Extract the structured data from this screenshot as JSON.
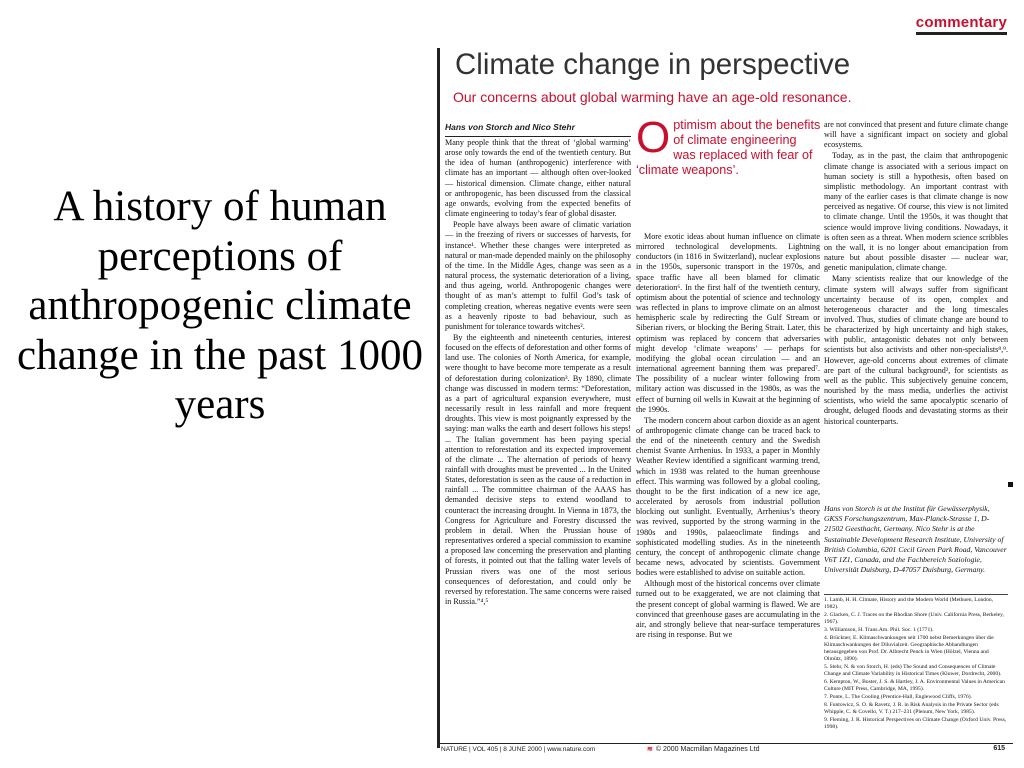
{
  "slide": {
    "title": "A history of human perceptions of anthropogenic climate change in the past 1000 years"
  },
  "article": {
    "section": "commentary",
    "title": "Climate change in perspective",
    "subtitle": "Our concerns about global warming have an age-old resonance.",
    "authors": "Hans von Storch and Nico Stehr",
    "pullquote": {
      "dropcap": "O",
      "text": "ptimism about the benefits of climate engineering was replaced with fear of ‘climate weapons’."
    },
    "col1": [
      "Many people think that the threat of ‘global warming’ arose only towards the end of the twentieth century. But the idea of human (anthropogenic) interference with climate has an important — although often over-looked — historical dimension. Climate change, either natural or anthropogenic, has been discussed from the classical age onwards, evolving from the expected benefits of climate engineering to today’s fear of global disaster.",
      "People have always been aware of climatic variation — in the freezing of rivers or successes of harvests, for instance¹. Whether these changes were interpreted as natural or man-made depended mainly on the philosophy of the time. In the Middle Ages, change was seen as a natural process, the systematic deterioration of a living, and thus ageing, world. Anthropogenic changes were thought of as man’s attempt to fulfil God’s task of completing creation, whereas negative events were seen as a heavenly riposte to bad behaviour, such as punishment for tolerance towards witches².",
      "By the eighteenth and nineteenth centuries, interest focused on the effects of deforestation and other forms of land use. The colonies of North America, for example, were thought to have become more temperate as a result of deforestation during colonization³. By 1890, climate change was discussed in modern terms: “Deforestation, as a part of agricultural expansion everywhere, must necessarily result in less rainfall and more frequent droughts. This view is most poignantly expressed by the saying: man walks the earth and desert follows his steps! ... The Italian government has been paying special attention to reforestation and its expected improvement of the climate ... The alternation of periods of heavy rainfall with droughts must be prevented ... In the United States, deforestation is seen as the cause of a reduction in rainfall ... The committee chairman of the AAAS has demanded decisive steps to extend woodland to counteract the increasing drought. In Vienna in 1873, the Congress for Agriculture and Forestry discussed the problem in detail. When the Prussian house of representatives ordered a special commission to examine a proposed law concerning the preservation and planting of forests, it pointed out that the falling water levels of Prussian rivers was one of the most serious consequences of deforestation, and could only be reversed by reforestation. The same concerns were raised in Russia.”⁴,⁵"
    ],
    "col2": [
      "More exotic ideas about human influence on climate mirrored technological developments. Lightning conductors (in 1816 in Switzerland), nuclear explosions in the 1950s, supersonic transport in the 1970s, and space traffic have all been blamed for climatic deterioration⁶. In the first half of the twentieth century, optimism about the potential of science and technology was reflected in plans to improve climate on an almost hemispheric scale by redirecting the Gulf Stream or Siberian rivers, or blocking the Bering Strait. Later, this optimism was replaced by concern that adversaries might develop ‘climate weapons’ — perhaps for modifying the global ocean circulation — and an international agreement banning them was prepared⁷. The possibility of a nuclear winter following from military action was discussed in the 1980s, as was the effect of burning oil wells in Kuwait at the beginning of the 1990s.",
      "The modern concern about carbon dioxide as an agent of anthropogenic climate change can be traced back to the end of the nineteenth century and the Swedish chemist Svante Arrhenius. In 1933, a paper in Monthly Weather Review identified a significant warming trend, which in 1938 was related to the human greenhouse effect. This warming was followed by a global cooling, thought to be the first indication of a new ice age, accelerated by aerosols from industrial pollution blocking out sunlight. Eventually, Arrhenius’s theory was revived, supported by the strong warming in the 1980s and 1990s, palaeoclimate findings and sophisticated modelling studies. As in the nineteenth century, the concept of anthropogenic climate change became news, advocated by scientists. Government bodies were established to advise on suitable action.",
      "Although most of the historical concerns over climate turned out to be exaggerated, we are not claiming that the present concept of global warming is flawed. We are convinced that greenhouse gases are accumulating in the air, and strongly believe that near-surface temperatures are rising in response. But we"
    ],
    "col3": [
      "are not convinced that present and future climate change will have a significant impact on society and global ecosystems.",
      "Today, as in the past, the claim that anthropogenic climate change is associated with a serious impact on human society is still a hypothesis, often based on simplistic methodology. An important contrast with many of the earlier cases is that climate change is now perceived as negative. Of course, this view is not limited to climate change. Until the 1950s, it was thought that science would improve living conditions. Nowadays, it is often seen as a threat. When modern science scribbles on the wall, it is no longer about emancipation from nature but about possible disaster — nuclear war, genetic manipulation, climate change.",
      "Many scientists realize that our knowledge of the climate system will always suffer from significant uncertainty because of its open, complex and heterogeneous character and the long timescales involved. Thus, studies of climate change are bound to be characterized by high uncertainty and high stakes, with public, antagonistic debates not only between scientists but also activists and other non-specialists⁸,⁹. However, age-old concerns about extremes of climate are part of the cultural background², for scientists as well as the public. This subjectively genuine concern, nourished by the mass media, underlies the activist scientists, who wield the same apocalyptic scenario of drought, deluged floods and devastating storms as their historical counterparts."
    ],
    "bio": "Hans von Storch is at the Institut für Gewässerphysik, GKSS Forschungszentrum, Max-Planck-Strasse 1, D-21502 Geesthacht, Germany. Nico Stehr is at the Sustainable Development Research Institute, University of British Columbia, 6201 Cecil Green Park Road, Vancouver V6T 1Z1, Canada, and the Fachbereich Soziologie, Universität Duisburg, D-47057 Duisburg, Germany.",
    "references": [
      "1. Lamb, H. H. Climate, History and the Modern World (Methuen, London, 1982).",
      "2. Glacken, C. J. Traces on the Rhodian Shore (Univ. California Press, Berkeley, 1967).",
      "3. Williamson, H. Trans.Am. Phil. Soc. 1 (1771).",
      "4. Brückner, E. Klimaschwankungen seit 1700 nebst Bemerkungen über die Klimaschwankungen der Diluvialzeit. Geographische Abhandlungen herausgegeben von Prof. Dr. Albrecht Penck in Wien (Hölzel, Vienna and Olmütz, 1890).",
      "5. Stehr, N. & von Storch, H. (eds) The Sound and Consequences of Climate Change and Climate Variability in Historical Times (Kluwer, Dordrecht, 2000).",
      "6. Kempton, W., Boster, J. S. & Hartley, J. A. Environmental Values in American Culture (MIT Press, Cambridge, MA, 1995).",
      "7. Ponte, L. The Cooling (Prentice-Hall, Englewood Cliffs, 1976).",
      "8. Funtowicz, S. O. & Ravetz, J. R. in Risk Analysis in the Private Sector (eds Whipple, C. & Covello, V. T.) 217–231 (Plenum, New York, 1985).",
      "9. Fleming, J. R. Historical Perspectives on Climate Change (Oxford Univ. Press, 1998)."
    ],
    "footer": {
      "journal": "NATURE | VOL 405 | 8 JUNE 2000 | www.nature.com",
      "copyright": "© 2000 Macmillan Magazines Ltd",
      "page": "615"
    }
  }
}
